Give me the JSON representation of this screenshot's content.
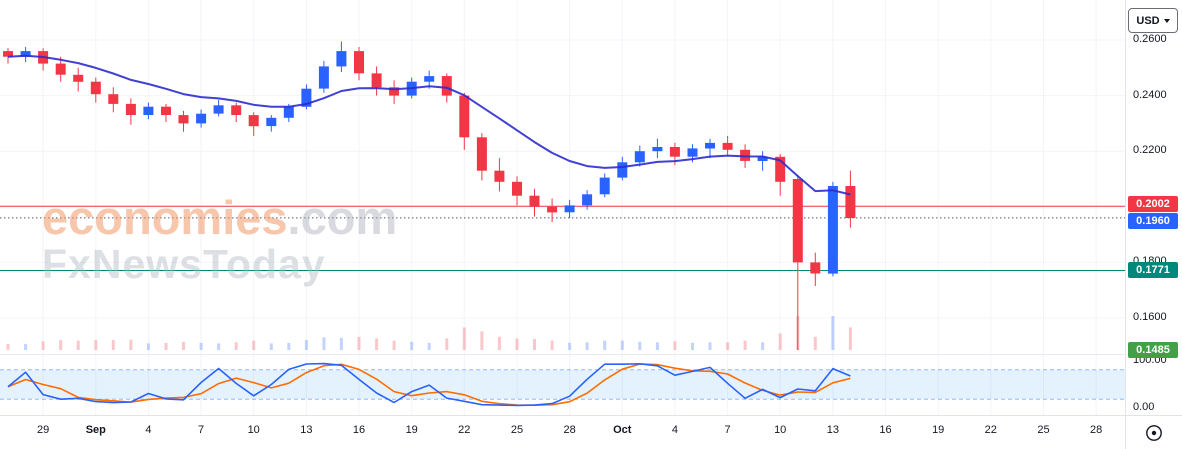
{
  "toolbar": {
    "currency_label": "USD"
  },
  "watermark": {
    "brand": "economies",
    "suffix": ".com",
    "tagline": "FxNewsToday"
  },
  "indicator_axis": {
    "top_label": "100.00",
    "bottom_label": "0.00"
  },
  "price_axis": {
    "ticks": [
      {
        "label": "0.2600",
        "price": 0.26
      },
      {
        "label": "0.2400",
        "price": 0.24
      },
      {
        "label": "0.2200",
        "price": 0.22
      },
      {
        "label": "0.1800",
        "price": 0.18
      },
      {
        "label": "0.1600",
        "price": 0.16
      }
    ],
    "badges": [
      {
        "label": "0.2002",
        "price": 0.2002,
        "color": "#f23645",
        "name": "resistance-price-badge"
      },
      {
        "label": "0.1960",
        "price": 0.196,
        "color": "#2962ff",
        "name": "last-price-badge"
      },
      {
        "label": "0.1771",
        "price": 0.1771,
        "color": "#00897b",
        "name": "support-price-badge"
      },
      {
        "label": "0.1485",
        "price": 0.1485,
        "color": "#43a047",
        "name": "low-price-badge"
      }
    ]
  },
  "time_axis": {
    "ticks": [
      {
        "label": "29",
        "day": 2,
        "major": false
      },
      {
        "label": "Sep",
        "day": 5,
        "major": true
      },
      {
        "label": "4",
        "day": 8,
        "major": false
      },
      {
        "label": "7",
        "day": 11,
        "major": false
      },
      {
        "label": "10",
        "day": 14,
        "major": false
      },
      {
        "label": "13",
        "day": 17,
        "major": false
      },
      {
        "label": "16",
        "day": 20,
        "major": false
      },
      {
        "label": "19",
        "day": 23,
        "major": false
      },
      {
        "label": "22",
        "day": 26,
        "major": false
      },
      {
        "label": "25",
        "day": 29,
        "major": false
      },
      {
        "label": "28",
        "day": 32,
        "major": false
      },
      {
        "label": "Oct",
        "day": 35,
        "major": true
      },
      {
        "label": "4",
        "day": 38,
        "major": false
      },
      {
        "label": "7",
        "day": 41,
        "major": false
      },
      {
        "label": "10",
        "day": 44,
        "major": false
      },
      {
        "label": "13",
        "day": 47,
        "major": false
      },
      {
        "label": "16",
        "day": 50,
        "major": false
      },
      {
        "label": "19",
        "day": 53,
        "major": false
      },
      {
        "label": "22",
        "day": 56,
        "major": false
      },
      {
        "label": "25",
        "day": 59,
        "major": false
      },
      {
        "label": "28",
        "day": 62,
        "major": false
      }
    ]
  },
  "colors": {
    "up": "#2962ff",
    "down": "#f23645",
    "grid": "#f2f4f8",
    "axis_text": "#131722",
    "background": "#ffffff",
    "ma": "#2b2bd0",
    "band_fill": "rgba(33,150,243,0.12)",
    "band_line": "rgba(41,98,255,0.45)"
  },
  "chart_data": {
    "type": "candlestick",
    "quote_currency": "USD",
    "price_axis_range": [
      0.145,
      0.262
    ],
    "price_grid": [
      0.26,
      0.24,
      0.22,
      0.2,
      0.18,
      0.16
    ],
    "dates": [
      "Aug 27",
      "Aug 28",
      "Aug 29",
      "Aug 30",
      "Aug 31",
      "Sep 1",
      "Sep 2",
      "Sep 3",
      "Sep 4",
      "Sep 5",
      "Sep 6",
      "Sep 7",
      "Sep 8",
      "Sep 9",
      "Sep 10",
      "Sep 11",
      "Sep 12",
      "Sep 13",
      "Sep 14",
      "Sep 15",
      "Sep 16",
      "Sep 17",
      "Sep 18",
      "Sep 19",
      "Sep 20",
      "Sep 21",
      "Sep 22",
      "Sep 23",
      "Sep 24",
      "Sep 25",
      "Sep 26",
      "Sep 27",
      "Sep 28",
      "Sep 29",
      "Sep 30",
      "Oct 1",
      "Oct 2",
      "Oct 3",
      "Oct 4",
      "Oct 5",
      "Oct 6",
      "Oct 7",
      "Oct 8",
      "Oct 9",
      "Oct 10",
      "Oct 11",
      "Oct 12",
      "Oct 13",
      "Oct 14"
    ],
    "ohlc": [
      [
        0.256,
        0.257,
        0.2515,
        0.254
      ],
      [
        0.254,
        0.2575,
        0.252,
        0.256
      ],
      [
        0.256,
        0.257,
        0.249,
        0.2515
      ],
      [
        0.2515,
        0.254,
        0.245,
        0.2475
      ],
      [
        0.2475,
        0.25,
        0.2415,
        0.245
      ],
      [
        0.245,
        0.2465,
        0.2375,
        0.2405
      ],
      [
        0.2405,
        0.243,
        0.234,
        0.237
      ],
      [
        0.237,
        0.239,
        0.2295,
        0.233
      ],
      [
        0.233,
        0.2375,
        0.2315,
        0.236
      ],
      [
        0.236,
        0.237,
        0.2305,
        0.233
      ],
      [
        0.233,
        0.2345,
        0.227,
        0.23
      ],
      [
        0.23,
        0.235,
        0.2285,
        0.2335
      ],
      [
        0.2335,
        0.2385,
        0.2325,
        0.2365
      ],
      [
        0.2365,
        0.2375,
        0.2305,
        0.233
      ],
      [
        0.233,
        0.234,
        0.2255,
        0.229
      ],
      [
        0.229,
        0.233,
        0.227,
        0.232
      ],
      [
        0.232,
        0.237,
        0.2305,
        0.236
      ],
      [
        0.236,
        0.244,
        0.235,
        0.2425
      ],
      [
        0.2425,
        0.2525,
        0.241,
        0.2505
      ],
      [
        0.2505,
        0.2595,
        0.2485,
        0.256
      ],
      [
        0.256,
        0.2575,
        0.2455,
        0.248
      ],
      [
        0.248,
        0.2505,
        0.24,
        0.243
      ],
      [
        0.243,
        0.2455,
        0.237,
        0.24
      ],
      [
        0.24,
        0.2465,
        0.239,
        0.245
      ],
      [
        0.245,
        0.249,
        0.2425,
        0.247
      ],
      [
        0.247,
        0.248,
        0.2375,
        0.24
      ],
      [
        0.24,
        0.241,
        0.2205,
        0.225
      ],
      [
        0.225,
        0.2265,
        0.2095,
        0.213
      ],
      [
        0.213,
        0.2175,
        0.2055,
        0.209
      ],
      [
        0.209,
        0.211,
        0.2005,
        0.204
      ],
      [
        0.204,
        0.2065,
        0.1965,
        0.2
      ],
      [
        0.2,
        0.203,
        0.1945,
        0.198
      ],
      [
        0.198,
        0.2025,
        0.196,
        0.2005
      ],
      [
        0.2005,
        0.206,
        0.199,
        0.2045
      ],
      [
        0.2045,
        0.212,
        0.2035,
        0.2105
      ],
      [
        0.2105,
        0.218,
        0.2095,
        0.216
      ],
      [
        0.216,
        0.222,
        0.2145,
        0.22
      ],
      [
        0.22,
        0.2245,
        0.2175,
        0.2215
      ],
      [
        0.2215,
        0.223,
        0.215,
        0.218
      ],
      [
        0.218,
        0.2225,
        0.216,
        0.221
      ],
      [
        0.221,
        0.2245,
        0.2175,
        0.223
      ],
      [
        0.223,
        0.2255,
        0.2185,
        0.2205
      ],
      [
        0.2205,
        0.2225,
        0.214,
        0.2165
      ],
      [
        0.2165,
        0.22,
        0.213,
        0.218
      ],
      [
        0.218,
        0.219,
        0.204,
        0.209
      ],
      [
        0.21,
        0.2115,
        0.1485,
        0.18
      ],
      [
        0.18,
        0.1835,
        0.1715,
        0.176
      ],
      [
        0.176,
        0.209,
        0.175,
        0.2075
      ],
      [
        0.2075,
        0.213,
        0.1925,
        0.196
      ]
    ],
    "overlays": {
      "moving_average": {
        "kind": "EMA",
        "period": 12,
        "color": "#2b2bd0"
      },
      "levels": [
        {
          "name": "resistance-line",
          "price": 0.2002,
          "color": "#f23645",
          "style": "solid"
        },
        {
          "name": "last-price-line",
          "price": 0.196,
          "color": "#555a63",
          "style": "dotted"
        },
        {
          "name": "support-line",
          "price": 0.1771,
          "color": "#00897b",
          "style": "solid"
        }
      ]
    },
    "lower_indicator": {
      "type": "stochastic",
      "k_period": 5,
      "d_period": 3,
      "k_color": "#2962ff",
      "d_color": "#ff6d00",
      "upper_band": 80,
      "lower_band": 20,
      "range": [
        0,
        100
      ]
    }
  }
}
